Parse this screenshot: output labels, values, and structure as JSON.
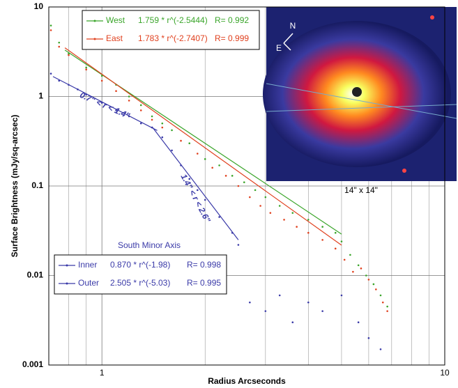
{
  "chart_data": {
    "type": "scatter",
    "xlabel": "Radius Arcseconds",
    "ylabel": "Surface Brightness (mJy/sq-arcsec)",
    "log_x": true,
    "log_y": true,
    "grid": true,
    "xlim": [
      0.7,
      10
    ],
    "ylim": [
      0.001,
      10
    ],
    "xticks": [
      1,
      10
    ],
    "xminor": [
      0.8,
      0.9,
      2,
      3,
      4,
      5,
      6,
      7,
      8,
      9
    ],
    "yticks": [
      0.001,
      0.01,
      0.1,
      1,
      10
    ],
    "series": [
      {
        "color": "#3aa52a",
        "x": [
          0.71,
          0.75,
          0.8,
          0.9,
          1.0,
          1.1,
          1.2,
          1.3,
          1.4,
          1.5,
          1.6,
          1.8,
          2.0,
          2.2,
          2.4,
          2.6,
          2.8,
          3.0,
          3.3,
          3.6,
          4.0,
          4.4,
          4.8,
          5.0,
          5.3,
          5.6,
          5.9,
          6.2,
          6.5,
          6.8
        ],
        "values": [
          6.2,
          4.0,
          3.0,
          2.1,
          1.7,
          1.35,
          1.0,
          0.8,
          0.6,
          0.5,
          0.42,
          0.3,
          0.2,
          0.17,
          0.13,
          0.11,
          0.09,
          0.075,
          0.06,
          0.05,
          0.042,
          0.035,
          0.03,
          0.024,
          0.017,
          0.013,
          0.01,
          0.008,
          0.006,
          0.0045
        ]
      },
      {
        "color": "#e0401e",
        "x": [
          0.71,
          0.75,
          0.8,
          0.9,
          1.0,
          1.1,
          1.2,
          1.3,
          1.4,
          1.5,
          1.7,
          1.9,
          2.1,
          2.3,
          2.5,
          2.7,
          2.9,
          3.1,
          3.4,
          3.7,
          4.0,
          4.4,
          4.8,
          5.1,
          5.4,
          5.7,
          6.0,
          6.3,
          6.6,
          6.8
        ],
        "values": [
          5.5,
          3.6,
          2.9,
          2.0,
          1.5,
          1.15,
          0.9,
          0.7,
          0.55,
          0.45,
          0.32,
          0.23,
          0.16,
          0.13,
          0.1,
          0.075,
          0.06,
          0.05,
          0.042,
          0.035,
          0.03,
          0.025,
          0.02,
          0.015,
          0.011,
          0.012,
          0.009,
          0.007,
          0.005,
          0.004
        ]
      },
      {
        "color": "#3a3aa8",
        "x": [
          0.71,
          0.75,
          0.8,
          0.85,
          0.9,
          1.0,
          1.1,
          1.2,
          1.3,
          1.4,
          1.5,
          1.6,
          1.7,
          1.8,
          1.9,
          2.0,
          2.2,
          2.4,
          2.5,
          2.7,
          3.0,
          3.3,
          3.6,
          4.0,
          4.4,
          5.0,
          5.6,
          6.0,
          6.5
        ],
        "values": [
          1.8,
          1.5,
          1.35,
          1.2,
          1.05,
          0.85,
          0.7,
          0.6,
          0.5,
          0.45,
          0.35,
          0.25,
          0.17,
          0.12,
          0.09,
          0.07,
          0.045,
          0.03,
          0.022,
          0.005,
          0.004,
          0.006,
          0.003,
          0.005,
          0.004,
          0.006,
          0.003,
          0.002,
          0.0015
        ]
      }
    ],
    "fits": [
      {
        "name": "West",
        "formula": "1.759 * r^(-2.5444)",
        "r": "R= 0.992",
        "color": "#3aa52a",
        "x": [
          0.78,
          5
        ],
        "values": [
          3.3,
          0.029
        ]
      },
      {
        "name": "East",
        "formula": "1.783 * r^(-2.7407)",
        "r": "R= 0.999",
        "color": "#e0401e",
        "x": [
          0.78,
          5
        ],
        "values": [
          3.5,
          0.0218
        ]
      },
      {
        "name": "Inner",
        "formula": "0.870 * r^(-1.98)",
        "r": "R= 0.998",
        "color": "#3a3aa8",
        "x": [
          0.72,
          1.45
        ],
        "values": [
          1.67,
          0.417
        ]
      },
      {
        "name": "Outer",
        "formula": "2.505 * r^(-5.03)",
        "r": "R= 0.995",
        "color": "#3a3aa8",
        "x": [
          1.4,
          2.5
        ],
        "values": [
          0.46,
          0.025
        ]
      }
    ],
    "south_title": "South  Minor  Axis",
    "annotations": [
      "0.7\" < r < 1.4\"",
      "1.4\" < r < 2.6\"",
      "14\" x 14\"",
      "N",
      "E"
    ]
  }
}
